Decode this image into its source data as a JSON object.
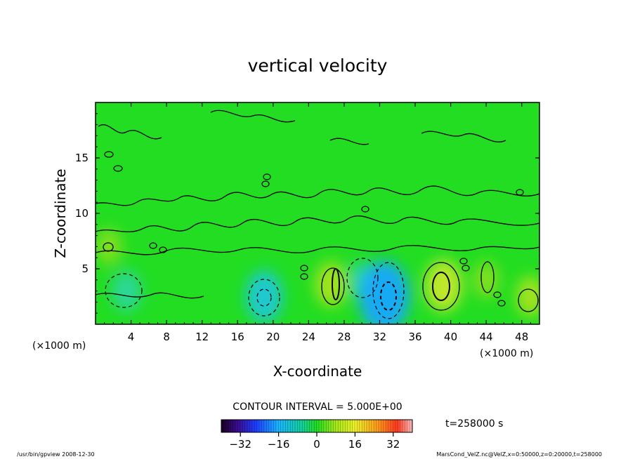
{
  "chart_data": {
    "type": "heatmap",
    "title": "vertical velocity",
    "xlabel": "X-coordinate",
    "ylabel": "Z-coordinate",
    "x_unit_left": "(×1000 m)",
    "x_unit_right": "(×1000 m)",
    "xlim": [
      0,
      50
    ],
    "ylim": [
      0,
      20
    ],
    "x_ticks": [
      4,
      8,
      12,
      16,
      20,
      24,
      28,
      32,
      36,
      40,
      44,
      48
    ],
    "y_ticks": [
      5,
      10,
      15
    ],
    "contour_interval_text": "CONTOUR INTERVAL = 5.000E+00",
    "time_text": "t=258000 s",
    "colorbar": {
      "range": [
        -40,
        40
      ],
      "ticks": [
        -32,
        -16,
        0,
        16,
        32
      ],
      "tick_labels": [
        "−32",
        "−16",
        "0",
        "16",
        "32"
      ]
    },
    "features": [
      {
        "x": 3.5,
        "z": 3.0,
        "value": -8
      },
      {
        "x": 19.0,
        "z": 2.5,
        "value": -13
      },
      {
        "x": 26.5,
        "z": 3.6,
        "value": 10
      },
      {
        "x": 30.0,
        "z": 4.0,
        "value": -6
      },
      {
        "x": 32.5,
        "z": 2.5,
        "value": -22
      },
      {
        "x": 39.2,
        "z": 3.5,
        "value": 13
      },
      {
        "x": 44.0,
        "z": 4.0,
        "value": 6
      },
      {
        "x": 49.0,
        "z": 2.5,
        "value": 8
      },
      {
        "x": 1.5,
        "z": 7.0,
        "value": 6
      }
    ]
  },
  "footer": {
    "left": "/usr/bin/gpview  2008-12-30",
    "right": "MarsCond_VelZ.nc@VelZ,x=0:50000,z=0:20000,t=258000"
  }
}
